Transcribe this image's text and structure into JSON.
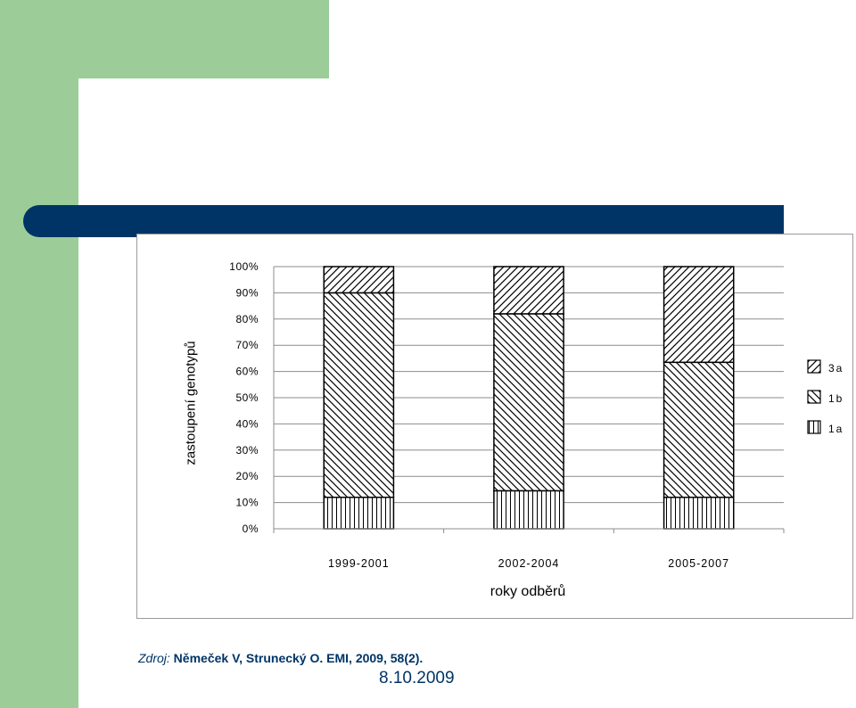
{
  "chart_data": {
    "type": "bar",
    "stacked": true,
    "percent_stacked": true,
    "xlabel": "roky odběrů",
    "ylabel": "zastoupení genotypů",
    "categories": [
      "1999-2001",
      "2002-2004",
      "2005-2007"
    ],
    "y_ticks": [
      "0%",
      "10%",
      "20%",
      "30%",
      "40%",
      "50%",
      "60%",
      "70%",
      "80%",
      "90%",
      "100%"
    ],
    "ylim": [
      0,
      100
    ],
    "grid": true,
    "legend_position": "right",
    "series": [
      {
        "name": "1a",
        "values": [
          12,
          14.5,
          12
        ],
        "pattern": "vertical"
      },
      {
        "name": "1b",
        "values": [
          78,
          67.5,
          51.5
        ],
        "pattern": "backslash"
      },
      {
        "name": "3a",
        "values": [
          10,
          18,
          36.5
        ],
        "pattern": "slash"
      }
    ],
    "legend_order": [
      "3a",
      "1b",
      "1a"
    ]
  },
  "source": {
    "lead": "Zdroj:",
    "ref": " Němeček V, Strunecký O. EMI, 2009, 58(2)."
  },
  "date": "8.10.2009",
  "colors": {
    "green": "#9ccd99",
    "navy": "#003466"
  }
}
